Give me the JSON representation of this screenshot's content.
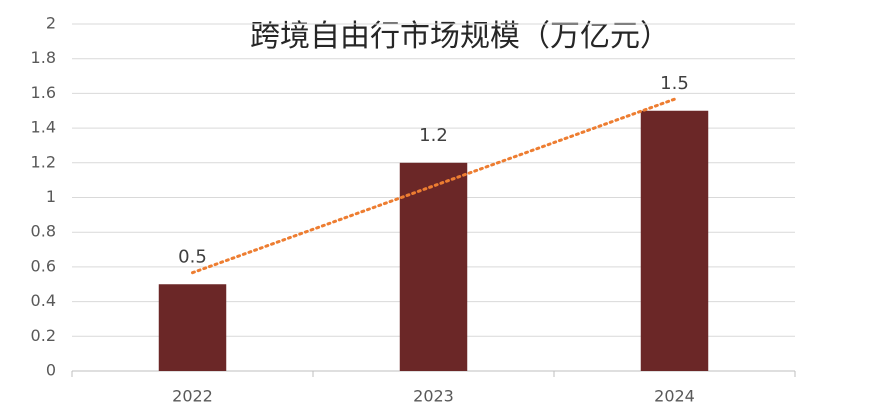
{
  "chart_data": {
    "type": "bar",
    "title": "跨境自由行市场规模（万亿元）",
    "categories": [
      "2022",
      "2023",
      "2024"
    ],
    "values": [
      0.5,
      1.2,
      1.5
    ],
    "color": "#6b2727",
    "ylim": [
      0,
      2
    ],
    "yticks": [
      0,
      0.2,
      0.4,
      0.6,
      0.8,
      1,
      1.2,
      1.4,
      1.6,
      1.8,
      2
    ],
    "grid": true,
    "data_labels": true,
    "trendline": {
      "type": "linear",
      "color": "#ed7d31"
    }
  }
}
